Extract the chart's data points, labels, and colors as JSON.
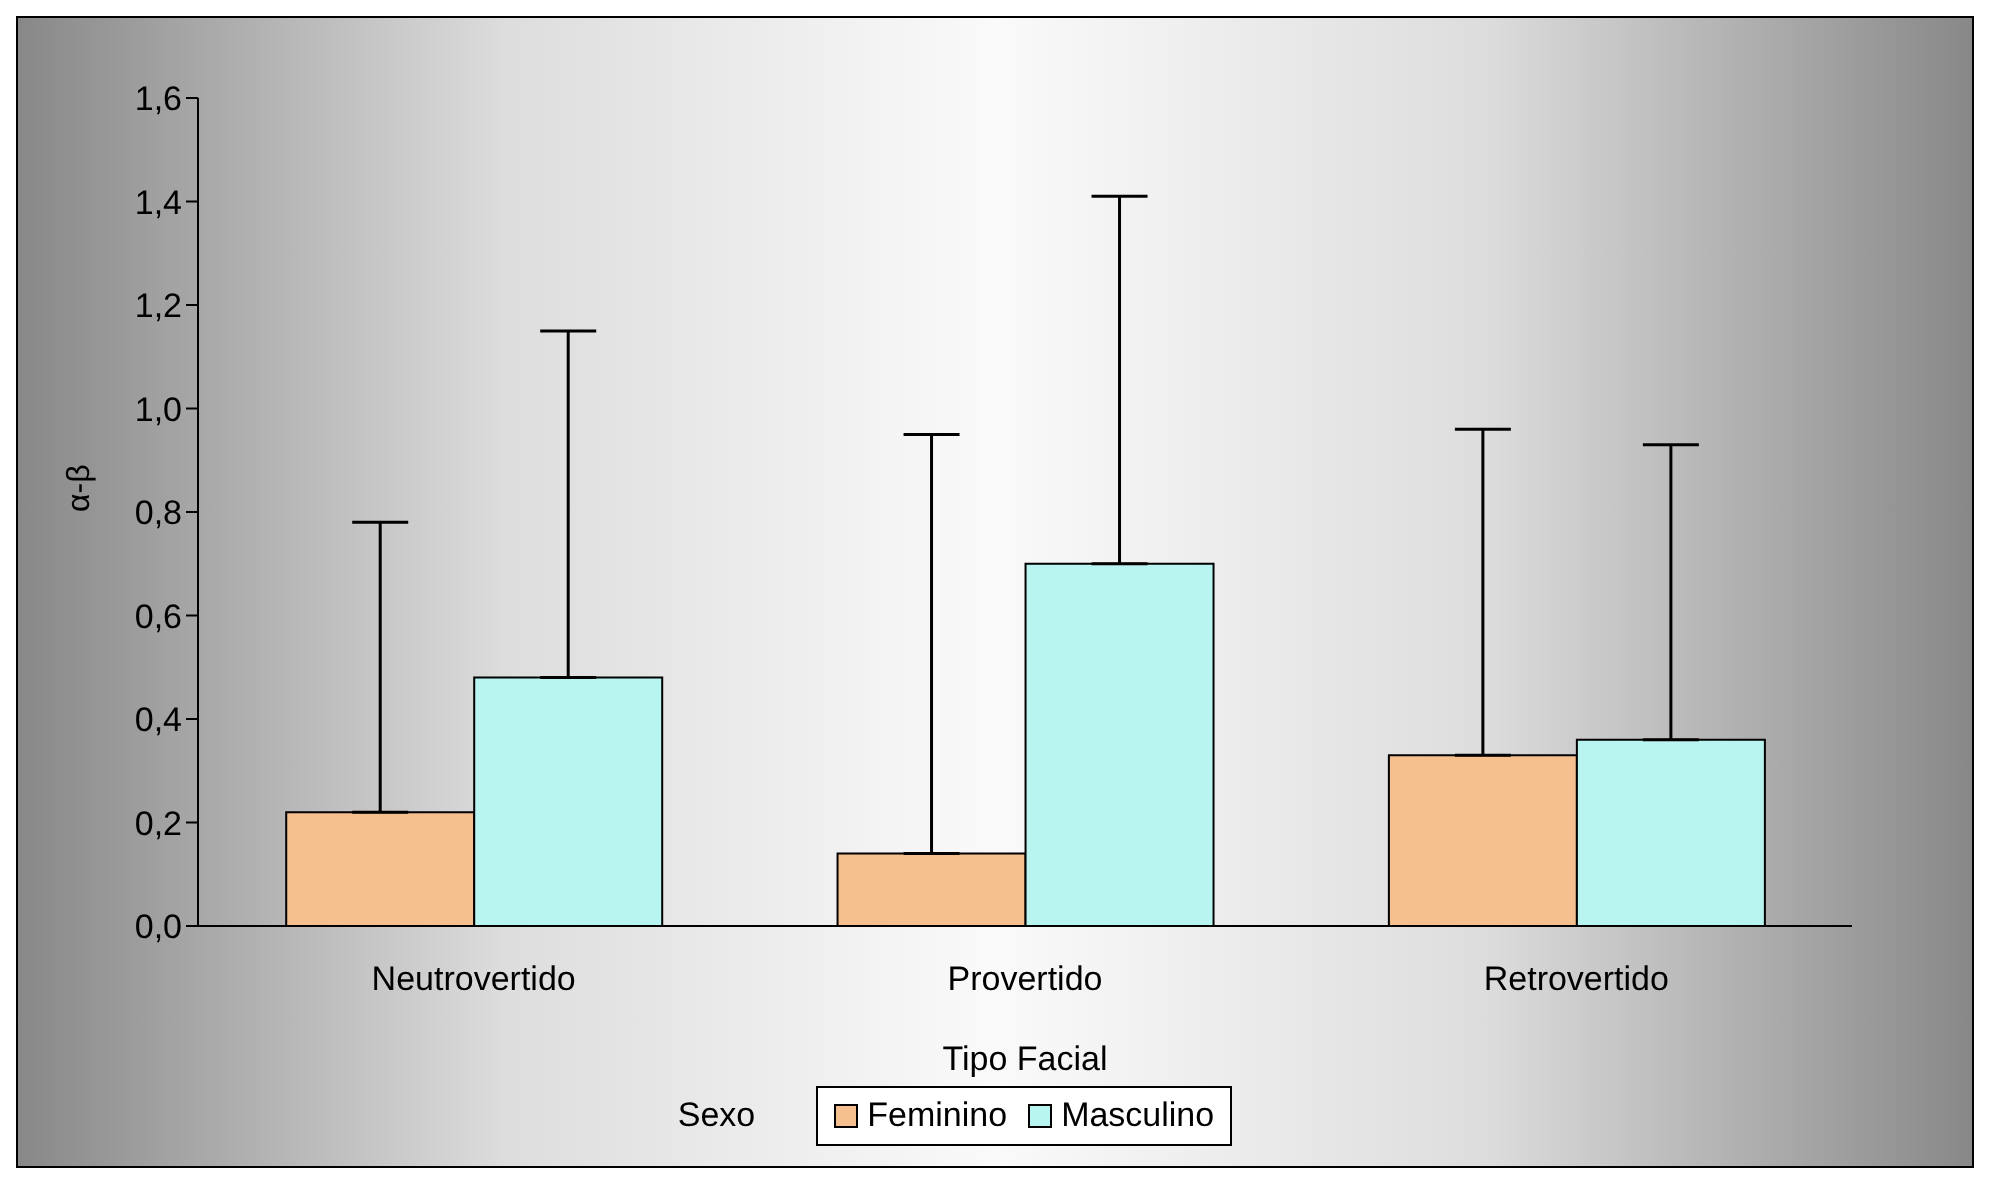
{
  "chart_data": {
    "type": "bar",
    "xlabel": "Tipo Facial",
    "ylabel": "α-β",
    "legend_title": "Sexo",
    "categories": [
      "Neutrovertido",
      "Provertido",
      "Retrovertido"
    ],
    "series": [
      {
        "name": "Feminino",
        "color": "#f5c08e",
        "values": [
          0.22,
          0.14,
          0.33
        ],
        "errors": [
          [
            0.22,
            0.78
          ],
          [
            0.14,
            0.95
          ],
          [
            0.33,
            0.96
          ]
        ]
      },
      {
        "name": "Masculino",
        "color": "#b8f4f0",
        "values": [
          0.48,
          0.7,
          0.36
        ],
        "errors": [
          [
            0.48,
            1.15
          ],
          [
            0.7,
            1.41
          ],
          [
            0.36,
            0.93
          ]
        ]
      }
    ],
    "ylim": [
      0,
      1.6
    ],
    "yticks": [
      {
        "value": 0,
        "label": "0,0"
      },
      {
        "value": 0.2,
        "label": "0,2"
      },
      {
        "value": 0.4,
        "label": "0,4"
      },
      {
        "value": 0.6,
        "label": "0,6"
      },
      {
        "value": 0.8,
        "label": "0,8"
      },
      {
        "value": 1,
        "label": "1,0"
      },
      {
        "value": 1.2,
        "label": "1,2"
      },
      {
        "value": 1.4,
        "label": "1,4"
      },
      {
        "value": 1.6,
        "label": "1,6"
      }
    ],
    "legend": "bottom"
  }
}
